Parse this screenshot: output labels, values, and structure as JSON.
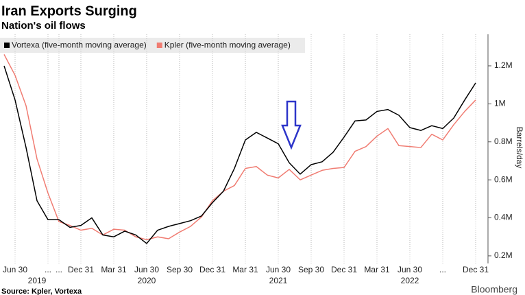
{
  "chart_data": {
    "type": "line",
    "title": "Iran Exports Surging",
    "subtitle": "Nation's oil flows",
    "source": "Source: Kpler, Vortexa",
    "brand": "Bloomberg",
    "y_label": "Barrels/day",
    "categories": [
      null,
      "Jun 30",
      null,
      null,
      "...",
      "...",
      null,
      "Dec 31",
      null,
      null,
      "Mar 31",
      null,
      null,
      "Jun 30",
      null,
      null,
      "Sep 30",
      null,
      null,
      "Dec 31",
      null,
      null,
      "Mar 31",
      null,
      null,
      "Jun 30",
      null,
      null,
      "Sep 30",
      null,
      null,
      "Dec 31",
      null,
      null,
      "Mar 31",
      null,
      null,
      "Jun 30",
      null,
      null,
      "...",
      null,
      null,
      "Dec 31"
    ],
    "category_years": [
      null,
      null,
      null,
      "2019",
      null,
      null,
      null,
      null,
      null,
      null,
      null,
      null,
      null,
      "2020",
      null,
      null,
      null,
      null,
      null,
      null,
      null,
      null,
      null,
      null,
      null,
      "2021",
      null,
      null,
      null,
      null,
      null,
      null,
      null,
      null,
      null,
      null,
      null,
      "2022",
      null,
      null,
      null,
      null,
      null,
      null
    ],
    "series": [
      {
        "name": "Vortexa (five-month moving average)",
        "color": "#000000",
        "values": [
          1200000,
          1020000,
          770000,
          490000,
          390000,
          390000,
          350000,
          360000,
          400000,
          310000,
          300000,
          330000,
          310000,
          265000,
          335000,
          355000,
          370000,
          385000,
          410000,
          480000,
          540000,
          660000,
          810000,
          850000,
          820000,
          790000,
          690000,
          630000,
          680000,
          695000,
          745000,
          825000,
          910000,
          915000,
          960000,
          970000,
          940000,
          875000,
          860000,
          885000,
          870000,
          925000,
          1020000,
          1110000
        ]
      },
      {
        "name": "Kpler (five-month moving average)",
        "color": "#f07c72",
        "values": [
          1260000,
          1150000,
          990000,
          710000,
          530000,
          380000,
          360000,
          335000,
          345000,
          310000,
          340000,
          335000,
          300000,
          285000,
          300000,
          290000,
          325000,
          355000,
          405000,
          490000,
          540000,
          570000,
          660000,
          670000,
          625000,
          610000,
          655000,
          600000,
          625000,
          650000,
          660000,
          665000,
          750000,
          775000,
          830000,
          870000,
          780000,
          775000,
          770000,
          840000,
          810000,
          890000,
          960000,
          1020000
        ]
      }
    ],
    "ylim": [
      160000,
      1366000
    ],
    "yticks": [
      {
        "value": 200000,
        "label": "0.2M"
      },
      {
        "value": 400000,
        "label": "0.4M"
      },
      {
        "value": 600000,
        "label": "0.6M"
      },
      {
        "value": 800000,
        "label": "0.8M"
      },
      {
        "value": 1000000,
        "label": "1M"
      },
      {
        "value": 1200000,
        "label": "1.2M"
      }
    ],
    "grid": true,
    "legend": "top-left"
  }
}
